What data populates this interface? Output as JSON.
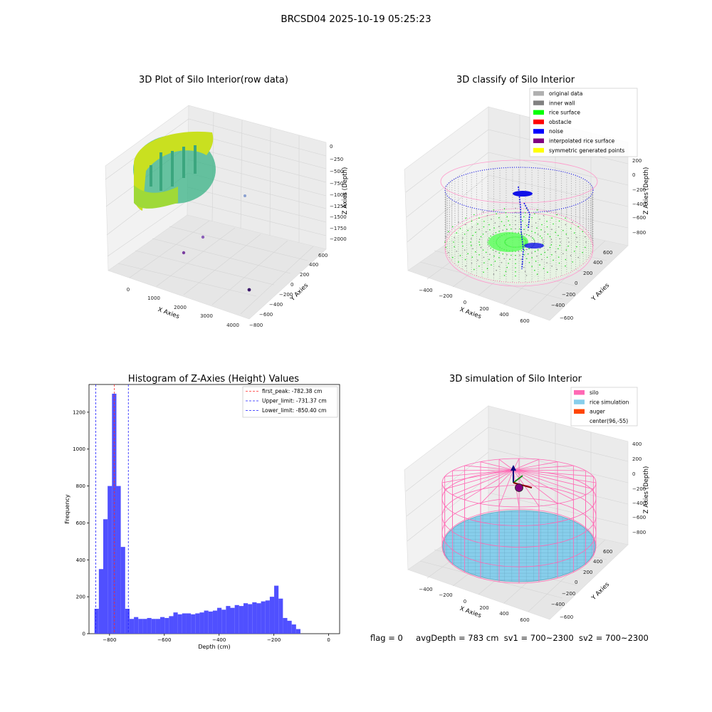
{
  "suptitle": "BRCSD04 2025-10-19 05:25:23",
  "footer": {
    "flag": "flag = 0",
    "avg_depth": "avgDepth = 783 cm",
    "sv1": "sv1 = 700~2300",
    "sv2": "sv2 = 700~2300"
  },
  "chart_data": [
    {
      "type": "scatter",
      "title": "3D Plot of Silo Interior(row data)",
      "xlabel": "X Axies",
      "ylabel": "Y Axies",
      "zlabel": "Z Axies (Depth)",
      "xticks": [
        "0",
        "1000",
        "2000",
        "3000",
        "4000"
      ],
      "yticks": [
        "600",
        "400",
        "200",
        "0",
        "−200",
        "−400",
        "−600",
        "−800"
      ],
      "zticks": [
        "0",
        "−250",
        "−500",
        "−750",
        "−1000",
        "−1250",
        "−1500",
        "−1750",
        "−2000"
      ],
      "colormap": "viridis"
    },
    {
      "type": "scatter",
      "title": "3D classify of Silo Interior",
      "xlabel": "X Axies",
      "ylabel": "Y Axies",
      "zlabel": "Z Axies (Depth)",
      "xticks": [
        "−400",
        "−200",
        "0",
        "200",
        "400",
        "600"
      ],
      "yticks": [
        "600",
        "400",
        "200",
        "0",
        "−200",
        "−400",
        "−600"
      ],
      "zticks": [
        "200",
        "0",
        "−200",
        "−400",
        "−600",
        "−800"
      ],
      "legend": [
        {
          "label": "original data",
          "color": "#b0b0b0"
        },
        {
          "label": "inner wall",
          "color": "#808080"
        },
        {
          "label": "rice surface",
          "color": "#00ff00"
        },
        {
          "label": "obstacle",
          "color": "#ff0000"
        },
        {
          "label": "noise",
          "color": "#0000ff"
        },
        {
          "label": "interpolated rice surface",
          "color": "#800080"
        },
        {
          "label": "symmetric generated points",
          "color": "#ffff00"
        }
      ],
      "legend_position": "top-right"
    },
    {
      "type": "bar",
      "title": "Histogram of Z-Axies (Height) Values",
      "xlabel": "Depth (cm)",
      "ylabel": "Frequency",
      "xlim": [
        -875,
        40
      ],
      "ylim": [
        0,
        1350
      ],
      "xticks": [
        -800,
        -600,
        -400,
        -200,
        0
      ],
      "yticks": [
        0,
        200,
        400,
        600,
        800,
        1000,
        1200
      ],
      "bin_width": 16,
      "bin_start": -855,
      "values": [
        135,
        350,
        620,
        800,
        1300,
        800,
        470,
        135,
        80,
        90,
        80,
        80,
        85,
        80,
        80,
        90,
        85,
        95,
        115,
        105,
        110,
        110,
        105,
        110,
        115,
        125,
        120,
        125,
        140,
        130,
        150,
        140,
        155,
        150,
        165,
        160,
        170,
        165,
        175,
        180,
        200,
        260,
        190,
        85,
        70,
        50,
        25
      ],
      "bar_color": "#5050ff",
      "vlines": [
        {
          "label": "first_peak: -782.38 cm",
          "x": -782.38,
          "color": "#ff2a2a"
        },
        {
          "label": "Upper_limit: -731.37 cm",
          "x": -731.37,
          "color": "#1f1fff"
        },
        {
          "label": "Lower_limit: -850.40 cm",
          "x": -850.4,
          "color": "#1f1fff"
        }
      ],
      "legend_position": "top-right"
    },
    {
      "type": "scatter",
      "title": "3D simulation of Silo Interior",
      "xlabel": "X Axies",
      "ylabel": "Y Axies",
      "zlabel": "Z Axies (Depth)",
      "xticks": [
        "−400",
        "−200",
        "0",
        "200",
        "400",
        "600"
      ],
      "yticks": [
        "600",
        "400",
        "200",
        "0",
        "−200",
        "−400",
        "−600"
      ],
      "zticks": [
        "400",
        "200",
        "0",
        "−200",
        "−400",
        "−600",
        "−800"
      ],
      "legend": [
        {
          "label": "silo",
          "color": "#ff69b4"
        },
        {
          "label": "rice simulation",
          "color": "#87ceeb"
        },
        {
          "label": "auger",
          "color": "#ff4500"
        },
        {
          "label": "center(96,-55)",
          "color": "#ffffff"
        }
      ],
      "legend_position": "top-right"
    }
  ]
}
